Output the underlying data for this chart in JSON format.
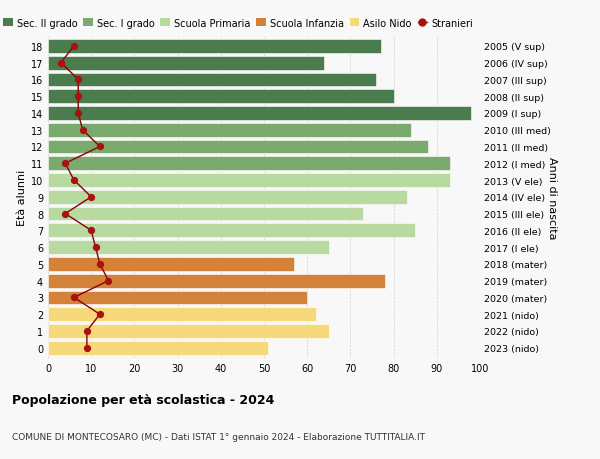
{
  "ages": [
    18,
    17,
    16,
    15,
    14,
    13,
    12,
    11,
    10,
    9,
    8,
    7,
    6,
    5,
    4,
    3,
    2,
    1,
    0
  ],
  "years": [
    "2005 (V sup)",
    "2006 (IV sup)",
    "2007 (III sup)",
    "2008 (II sup)",
    "2009 (I sup)",
    "2010 (III med)",
    "2011 (II med)",
    "2012 (I med)",
    "2013 (V ele)",
    "2014 (IV ele)",
    "2015 (III ele)",
    "2016 (II ele)",
    "2017 (I ele)",
    "2018 (mater)",
    "2019 (mater)",
    "2020 (mater)",
    "2021 (nido)",
    "2022 (nido)",
    "2023 (nido)"
  ],
  "bar_values": [
    77,
    64,
    76,
    80,
    98,
    84,
    88,
    93,
    93,
    83,
    73,
    85,
    65,
    57,
    78,
    60,
    62,
    65,
    51
  ],
  "stranieri": [
    6,
    3,
    7,
    7,
    7,
    8,
    12,
    4,
    6,
    10,
    4,
    10,
    11,
    12,
    14,
    6,
    12,
    9,
    9
  ],
  "bar_colors": [
    "#4a7c4e",
    "#4a7c4e",
    "#4a7c4e",
    "#4a7c4e",
    "#4a7c4e",
    "#7aaa6e",
    "#7aaa6e",
    "#7aaa6e",
    "#b8d9a0",
    "#b8d9a0",
    "#b8d9a0",
    "#b8d9a0",
    "#b8d9a0",
    "#d4813a",
    "#d4813a",
    "#d4813a",
    "#f5d97a",
    "#f5d97a",
    "#f5d97a"
  ],
  "legend_labels": [
    "Sec. II grado",
    "Sec. I grado",
    "Scuola Primaria",
    "Scuola Infanzia",
    "Asilo Nido",
    "Stranieri"
  ],
  "legend_colors": [
    "#4a7c4e",
    "#7aaa6e",
    "#b8d9a0",
    "#d4813a",
    "#f5d97a",
    "#a01010"
  ],
  "ylabel": "Età alunni",
  "ylabel2": "Anni di nascita",
  "title": "Popolazione per età scolastica - 2024",
  "subtitle": "COMUNE DI MONTECOSARO (MC) - Dati ISTAT 1° gennaio 2024 - Elaborazione TUTTITALIA.IT",
  "xlim": [
    0,
    100
  ],
  "bg_color": "#f8f8f8",
  "grid_color": "#d0d0d0"
}
